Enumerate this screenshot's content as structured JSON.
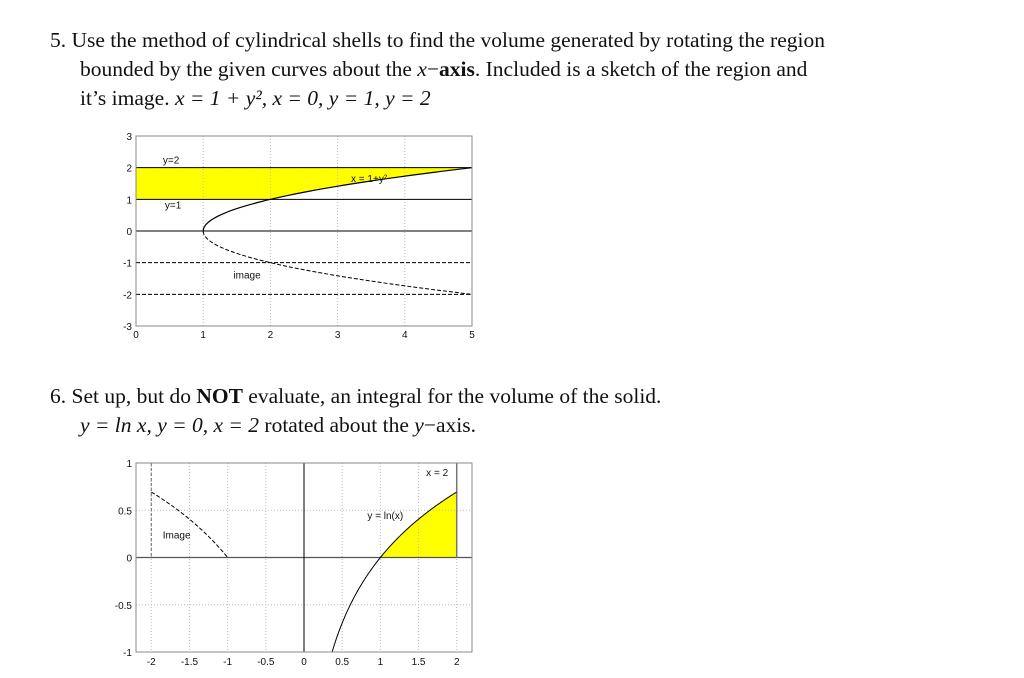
{
  "problems": [
    {
      "number": "5.",
      "lines": [
        "Use the method of cylindrical shells to find the volume generated by rotating the region",
        "bounded by the given curves about the ",
        "x",
        "−",
        "axis",
        ". Included is a sketch of the region and",
        "it’s image. ",
        "x = 1 + y², x = 0, y = 1, y = 2"
      ]
    },
    {
      "number": "6.",
      "lines": [
        "Set up, but do ",
        "NOT",
        " evaluate, an integral for the volume of the solid.",
        "y = ln x, y = 0, x = 2",
        " rotated about the ",
        "y",
        "−axis."
      ]
    }
  ],
  "chart_data": [
    {
      "type": "line",
      "xlim": [
        0,
        5
      ],
      "ylim": [
        -3,
        3
      ],
      "xticks": [
        "0",
        "1",
        "2",
        "3",
        "4",
        "5"
      ],
      "yticks": [
        "3",
        "2",
        "1",
        "0",
        "-1",
        "-2",
        "-3"
      ],
      "grid": true,
      "labels": {
        "top": "y=2",
        "bottom": "y=1",
        "curve": "x = 1+y²",
        "image": "image"
      },
      "curve": "x = 1 + y^2",
      "horizontal_lines": [
        {
          "y": 2,
          "style": "solid"
        },
        {
          "y": 1,
          "style": "solid"
        },
        {
          "y": 0,
          "style": "solid"
        },
        {
          "y": -1,
          "style": "dashed"
        },
        {
          "y": -2,
          "style": "dashed"
        }
      ],
      "shaded_region": "between x=0 and x=1+y^2 for 1<=y<=2",
      "fill_color": "#ffff00"
    },
    {
      "type": "line",
      "xlim": [
        -2.2,
        2.2
      ],
      "ylim": [
        -1,
        1
      ],
      "xticks": [
        "-2",
        "-1.5",
        "-1",
        "-0.5",
        "0",
        "0.5",
        "1",
        "1.5",
        "2"
      ],
      "yticks": [
        "1",
        "0.5",
        "0",
        "-0.5",
        "-1"
      ],
      "grid": true,
      "labels": {
        "curve": "y = ln(x)",
        "line": "x = 2",
        "image": "Image"
      },
      "curve": "y = ln(x)",
      "image_curve": "y = ln(-x), -2<=x<=-1",
      "shaded_region": "under ln(x) for 1<=x<=2",
      "fill_color": "#ffff00"
    }
  ]
}
